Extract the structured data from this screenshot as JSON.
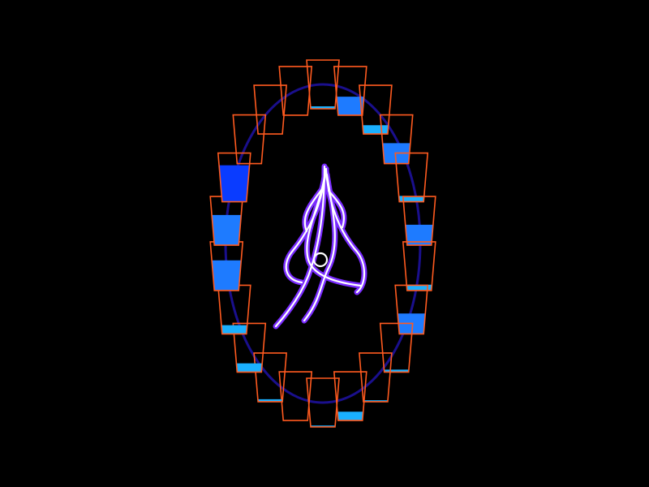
{
  "scene": {
    "background": "#000000",
    "track_color": "#1a0f8c",
    "cup_outline_color": "#ff5a1f",
    "liquid_colors": {
      "deep": "#0a3cff",
      "mid": "#1e7bff",
      "light": "#1ab0ff"
    },
    "fountain": {
      "glow_color": "#7a2cff",
      "core_color": "#ffffff",
      "icon": "water-jet-icon"
    },
    "cups": [
      {
        "fill": 0.05,
        "tone": "light"
      },
      {
        "fill": 0.38,
        "tone": "mid"
      },
      {
        "fill": 0.18,
        "tone": "light"
      },
      {
        "fill": 0.42,
        "tone": "mid"
      },
      {
        "fill": 0.12,
        "tone": "light"
      },
      {
        "fill": 0.42,
        "tone": "mid"
      },
      {
        "fill": 0.12,
        "tone": "light"
      },
      {
        "fill": 0.42,
        "tone": "mid"
      },
      {
        "fill": 0.05,
        "tone": "light"
      },
      {
        "fill": 0.03,
        "tone": "light"
      },
      {
        "fill": 0.18,
        "tone": "light"
      },
      {
        "fill": 0.03,
        "tone": "light"
      },
      {
        "fill": 0.0,
        "tone": "light"
      },
      {
        "fill": 0.05,
        "tone": "light"
      },
      {
        "fill": 0.18,
        "tone": "light"
      },
      {
        "fill": 0.18,
        "tone": "light"
      },
      {
        "fill": 0.62,
        "tone": "mid"
      },
      {
        "fill": 0.62,
        "tone": "mid"
      },
      {
        "fill": 0.75,
        "tone": "deep"
      },
      {
        "fill": 0.0,
        "tone": "light"
      },
      {
        "fill": 0.0,
        "tone": "light"
      },
      {
        "fill": 0.0,
        "tone": "light"
      }
    ]
  }
}
